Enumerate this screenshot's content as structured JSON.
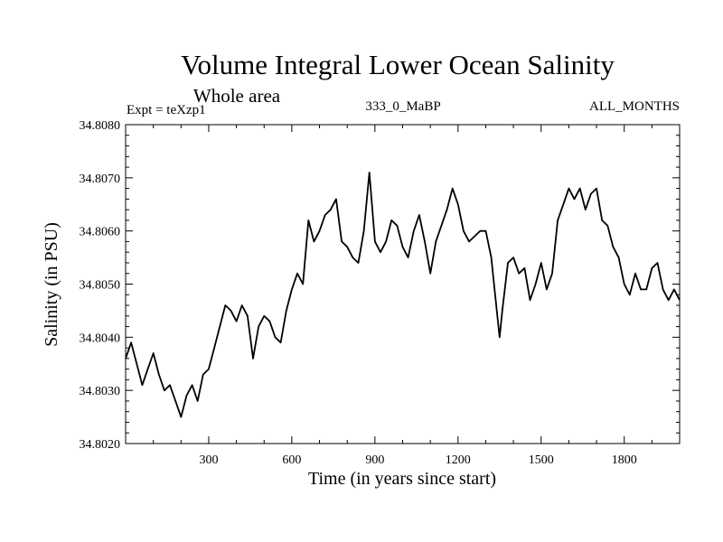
{
  "chart_data": {
    "type": "line",
    "title": "Volume Integral Lower Ocean Salinity",
    "subtitle": "Whole area",
    "left_note": "Expt = teXzp1",
    "center_note": "333_0_MaBP",
    "right_note": "ALL_MONTHS",
    "xlabel": "Time (in years since start)",
    "ylabel": "Salinity (in PSU)",
    "xlim": [
      0,
      2000
    ],
    "ylim": [
      34.802,
      34.808
    ],
    "x_ticks": [
      300,
      600,
      900,
      1200,
      1500,
      1800
    ],
    "x_tick_labels": [
      "300",
      "600",
      "900",
      "1200",
      "1500",
      "1800"
    ],
    "y_ticks": [
      34.802,
      34.803,
      34.804,
      34.805,
      34.806,
      34.807,
      34.808
    ],
    "y_tick_labels": [
      "34.8020",
      "34.8030",
      "34.8040",
      "34.8050",
      "34.8060",
      "34.8070",
      "34.8080"
    ],
    "grid": false,
    "series": [
      {
        "name": "Salinity",
        "color": "#000000",
        "x": [
          0,
          20,
          40,
          60,
          80,
          100,
          120,
          140,
          160,
          180,
          200,
          210,
          220,
          240,
          260,
          280,
          300,
          320,
          340,
          360,
          380,
          400,
          420,
          440,
          460,
          480,
          500,
          520,
          540,
          560,
          580,
          600,
          620,
          640,
          660,
          680,
          700,
          720,
          740,
          760,
          780,
          800,
          820,
          840,
          860,
          880,
          900,
          920,
          940,
          960,
          980,
          1000,
          1020,
          1040,
          1060,
          1080,
          1100,
          1120,
          1140,
          1160,
          1180,
          1200,
          1220,
          1240,
          1260,
          1280,
          1300,
          1320,
          1340,
          1350,
          1360,
          1380,
          1400,
          1420,
          1440,
          1460,
          1480,
          1500,
          1520,
          1540,
          1560,
          1580,
          1600,
          1620,
          1640,
          1660,
          1680,
          1700,
          1720,
          1740,
          1760,
          1780,
          1800,
          1820,
          1840,
          1860,
          1880,
          1900,
          1920,
          1940,
          1960,
          1980,
          2000
        ],
        "y": [
          34.8036,
          34.8039,
          34.8035,
          34.8031,
          34.8034,
          34.8037,
          34.8033,
          34.803,
          34.8031,
          34.8028,
          34.8025,
          34.8027,
          34.8029,
          34.8031,
          34.8028,
          34.8033,
          34.8034,
          34.8038,
          34.8042,
          34.8046,
          34.8045,
          34.8043,
          34.8046,
          34.8044,
          34.8036,
          34.8042,
          34.8044,
          34.8043,
          34.804,
          34.8039,
          34.8045,
          34.8049,
          34.8052,
          34.805,
          34.8062,
          34.8058,
          34.806,
          34.8063,
          34.8064,
          34.8066,
          34.8058,
          34.8057,
          34.8055,
          34.8054,
          34.806,
          34.8071,
          34.8058,
          34.8056,
          34.8058,
          34.8062,
          34.8061,
          34.8057,
          34.8055,
          34.806,
          34.8063,
          34.8058,
          34.8052,
          34.8058,
          34.8061,
          34.8064,
          34.8068,
          34.8065,
          34.806,
          34.8058,
          34.8059,
          34.806,
          34.806,
          34.8055,
          34.8045,
          34.804,
          34.8045,
          34.8054,
          34.8055,
          34.8052,
          34.8053,
          34.8047,
          34.805,
          34.8054,
          34.8049,
          34.8052,
          34.8062,
          34.8065,
          34.8068,
          34.8066,
          34.8068,
          34.8064,
          34.8067,
          34.8068,
          34.8062,
          34.8061,
          34.8057,
          34.8055,
          34.805,
          34.8048,
          34.8052,
          34.8049,
          34.8049,
          34.8053,
          34.8054,
          34.8049,
          34.8047,
          34.8049,
          34.8047
        ]
      }
    ]
  }
}
